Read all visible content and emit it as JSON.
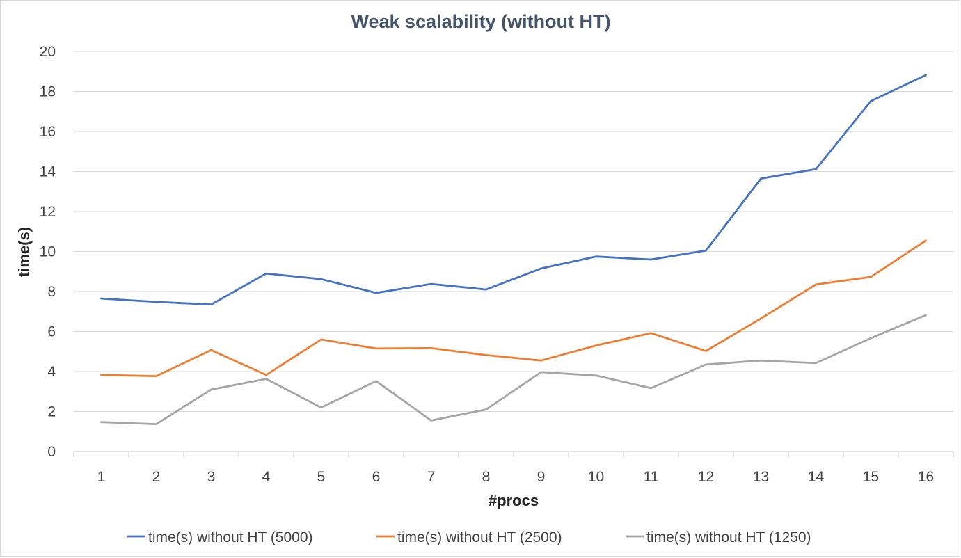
{
  "chart_data": {
    "type": "line",
    "title": "Weak scalability (without HT)",
    "xlabel": "#procs",
    "ylabel": "time(s)",
    "x": [
      "1",
      "2",
      "3",
      "4",
      "5",
      "6",
      "7",
      "8",
      "9",
      "10",
      "11",
      "12",
      "13",
      "14",
      "15",
      "16"
    ],
    "ylim": [
      0,
      20
    ],
    "yticks": [
      0,
      2,
      4,
      6,
      8,
      10,
      12,
      14,
      16,
      18,
      20
    ],
    "grid": true,
    "legend_position": "bottom",
    "series": [
      {
        "name": "time(s) without HT (5000)",
        "color": "#4472c4",
        "values": [
          7.65,
          7.48,
          7.35,
          8.9,
          8.62,
          7.93,
          8.38,
          8.1,
          9.15,
          9.75,
          9.6,
          10.05,
          13.65,
          14.12,
          17.52,
          18.82
        ]
      },
      {
        "name": "time(s) without HT (2500)",
        "color": "#ed7d31",
        "values": [
          3.83,
          3.77,
          5.07,
          3.83,
          5.6,
          5.15,
          5.17,
          4.82,
          4.55,
          5.3,
          5.92,
          5.03,
          6.65,
          8.35,
          8.73,
          10.55
        ]
      },
      {
        "name": "time(s) without HT (1250)",
        "color": "#a5a5a5",
        "values": [
          1.47,
          1.37,
          3.1,
          3.63,
          2.2,
          3.52,
          1.55,
          2.1,
          3.97,
          3.8,
          3.17,
          4.35,
          4.55,
          4.42,
          5.67,
          6.82
        ]
      }
    ]
  }
}
